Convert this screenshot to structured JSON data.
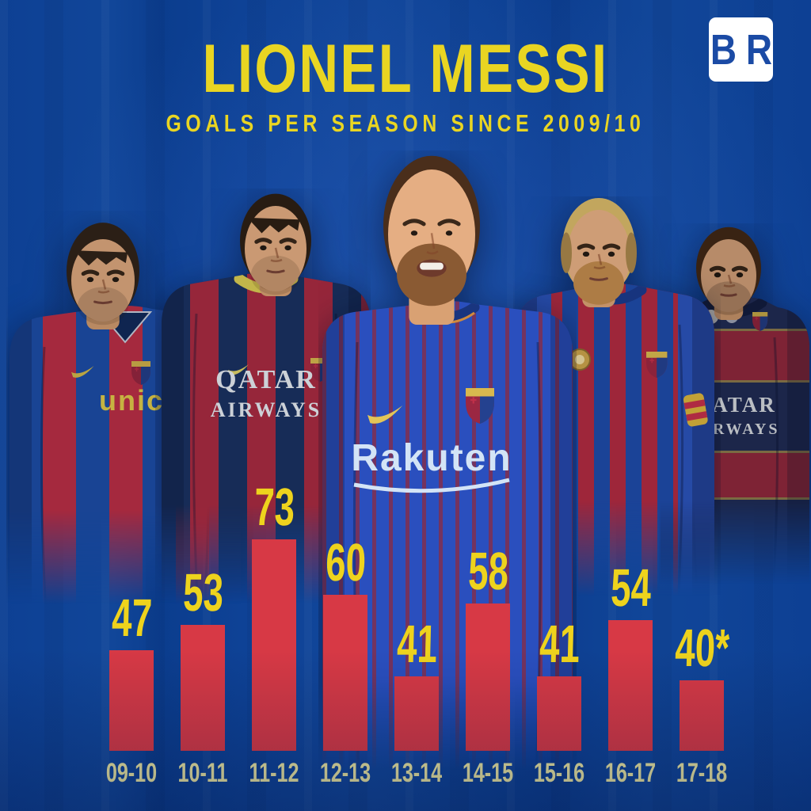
{
  "header": {
    "title": "LIONEL MESSI",
    "subtitle": "GOALS PER SEASON SINCE 2009/10"
  },
  "brand": {
    "logo_text": "B/R",
    "letter_left": "B",
    "letter_right": "R"
  },
  "players": [
    {
      "jersey_sponsor": "unicef"
    },
    {
      "jersey_sponsor": "QATAR AIRWAYS"
    },
    {
      "jersey_sponsor": "Rakuten"
    },
    {
      "jersey_sponsor": ""
    },
    {
      "jersey_sponsor": "QATAR AIRWAYS"
    }
  ],
  "colors": {
    "background": "#0e4296",
    "title_yellow": "#e9d522",
    "value_yellow": "#eed31d",
    "season_label": "#efeaa2",
    "bar_red": "#d73945",
    "logo_blue": "#1b4ba5",
    "kit_blue": "#1d50ae",
    "kit_red": "#c23049",
    "kit_navy": "#1a3263",
    "royal_blue": "#2a4fbe",
    "pinstripe_maroon": "#7c3054",
    "skin": "#e5ae83"
  },
  "chart_data": {
    "type": "bar",
    "title": "LIONEL MESSI",
    "subtitle": "GOALS PER SEASON SINCE 2009/10",
    "categories": [
      "09-10",
      "10-11",
      "11-12",
      "12-13",
      "13-14",
      "14-15",
      "15-16",
      "16-17",
      "17-18"
    ],
    "values": [
      47,
      53,
      73,
      60,
      41,
      58,
      41,
      54,
      40
    ],
    "value_labels": [
      "47",
      "53",
      "73",
      "60",
      "41",
      "58",
      "41",
      "54",
      "40*"
    ],
    "bar_color": "#d73945",
    "value_label_color": "#eed31d",
    "category_label_color": "#efeaa2",
    "xlabel": "",
    "ylabel": "",
    "ylim": [
      0,
      80
    ],
    "grid": false,
    "legend": "none"
  }
}
